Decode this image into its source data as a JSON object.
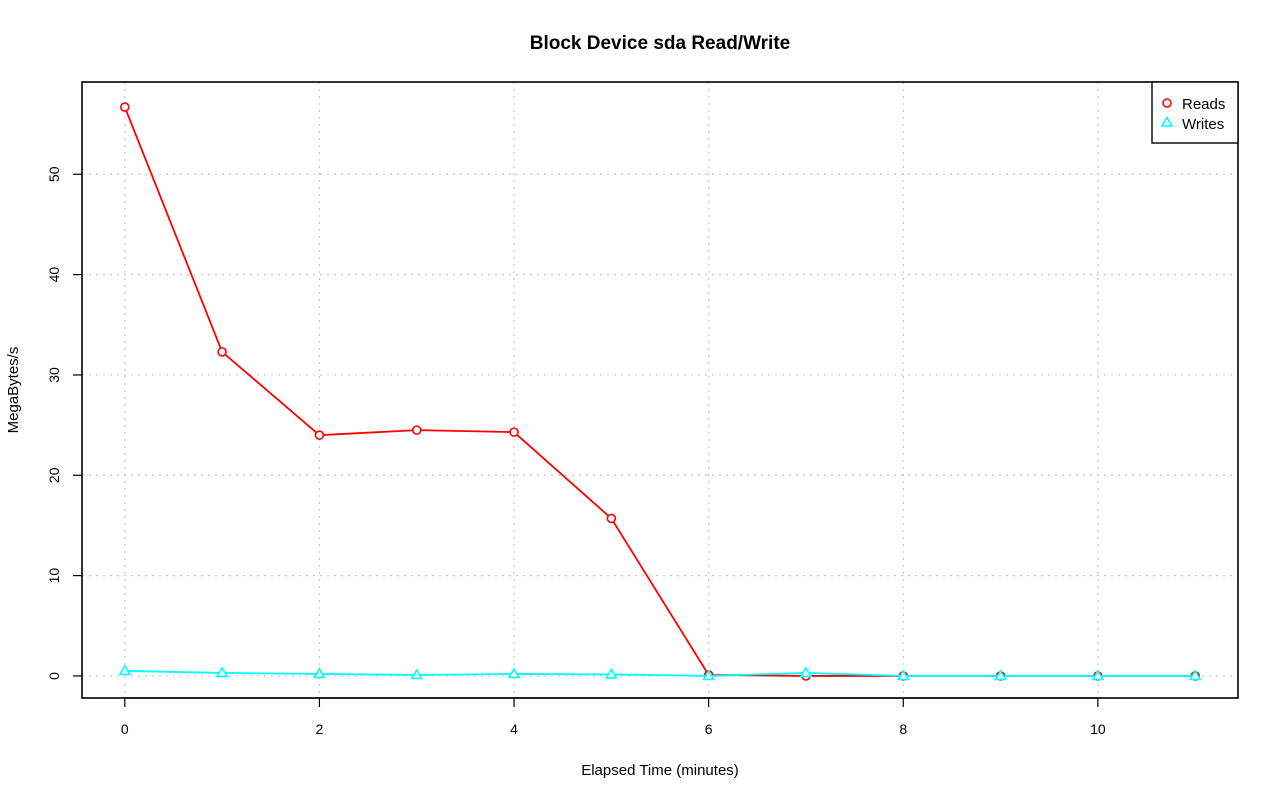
{
  "chart_data": {
    "type": "line",
    "title": "Block Device sda Read/Write",
    "xlabel": "Elapsed Time (minutes)",
    "ylabel": "MegaBytes/s",
    "xlim": [
      -0.44,
      11.44
    ],
    "ylim": [
      -2.2,
      59.2
    ],
    "xticks": [
      0,
      2,
      4,
      6,
      8,
      10
    ],
    "yticks": [
      0,
      10,
      20,
      30,
      40,
      50
    ],
    "grid": true,
    "legend_position": "top-right",
    "x": [
      0,
      1,
      2,
      3,
      4,
      5,
      6,
      7,
      8,
      9,
      10,
      11
    ],
    "series": [
      {
        "name": "Reads",
        "color": "#ff0000",
        "marker": "circle",
        "values": [
          56.7,
          32.3,
          24.0,
          24.5,
          24.3,
          15.7,
          0.1,
          0.0,
          0.0,
          0.0,
          0.0,
          0.0
        ]
      },
      {
        "name": "Writes",
        "color": "#00ffff",
        "marker": "triangle",
        "values": [
          0.5,
          0.3,
          0.2,
          0.1,
          0.2,
          0.15,
          0.0,
          0.3,
          0.0,
          0.0,
          0.0,
          0.0
        ]
      }
    ]
  }
}
